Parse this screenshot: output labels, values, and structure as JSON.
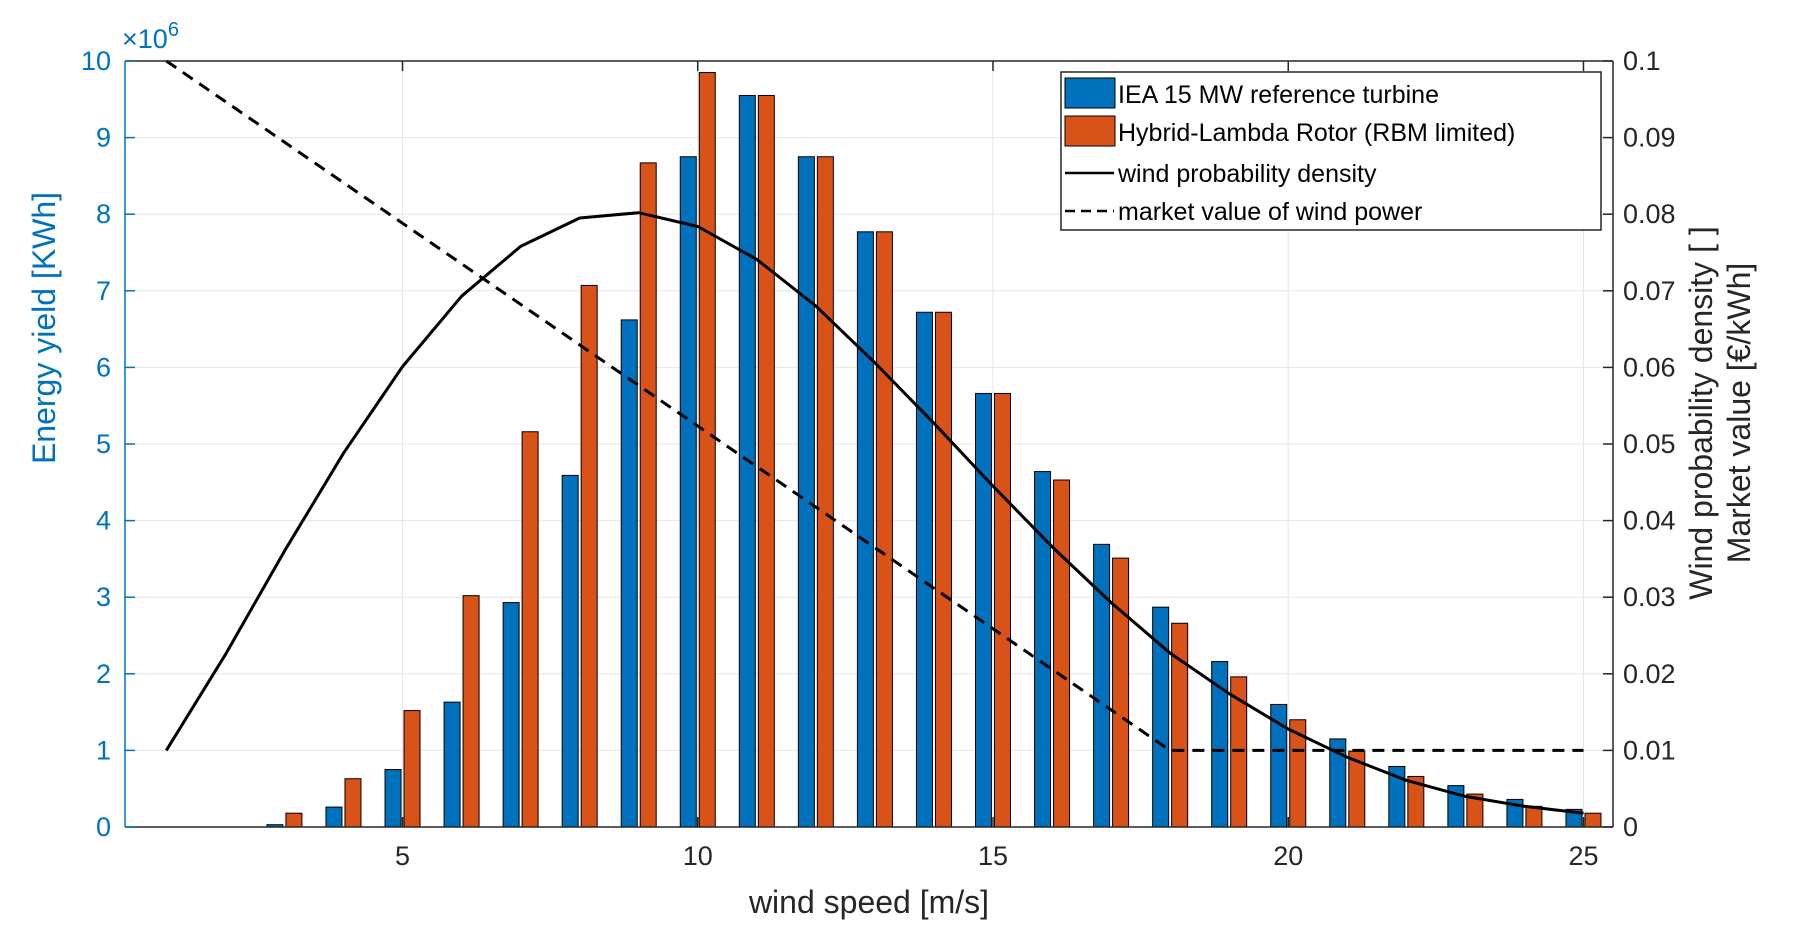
{
  "chart_data": {
    "type": "bar",
    "x": [
      1,
      2,
      3,
      4,
      5,
      6,
      7,
      8,
      9,
      10,
      11,
      12,
      13,
      14,
      15,
      16,
      17,
      18,
      19,
      20,
      21,
      22,
      23,
      24,
      25
    ],
    "series": [
      {
        "name": "IEA 15 MW reference turbine",
        "axis": "left",
        "color": "#0072BD",
        "values": [
          0,
          0,
          0.03,
          0.26,
          0.75,
          1.63,
          2.93,
          4.59,
          6.62,
          8.75,
          9.55,
          8.75,
          7.77,
          6.72,
          5.66,
          4.64,
          3.69,
          2.87,
          2.16,
          1.6,
          1.15,
          0.79,
          0.54,
          0.36,
          0.23
        ]
      },
      {
        "name": "Hybrid-Lambda Rotor (RBM limited)",
        "axis": "left",
        "color": "#D95319",
        "values": [
          0,
          0,
          0.18,
          0.63,
          1.52,
          3.02,
          5.16,
          7.07,
          8.67,
          9.85,
          9.55,
          8.75,
          7.77,
          6.72,
          5.66,
          4.53,
          3.51,
          2.66,
          1.96,
          1.4,
          0.99,
          0.66,
          0.43,
          0.27,
          0.18
        ]
      }
    ],
    "lines": [
      {
        "name": "wind probability density",
        "axis": "right",
        "style": "solid",
        "x": [
          1,
          2,
          3,
          4,
          5,
          6,
          7,
          8,
          9,
          10,
          11,
          12,
          13,
          14,
          15,
          16,
          17,
          18,
          19,
          20,
          21,
          22,
          23,
          24,
          25
        ],
        "values": [
          0.01,
          0.0225,
          0.036,
          0.0488,
          0.0601,
          0.0693,
          0.0758,
          0.0795,
          0.0802,
          0.0784,
          0.0741,
          0.068,
          0.0606,
          0.0527,
          0.0445,
          0.0366,
          0.0293,
          0.0227,
          0.0174,
          0.0128,
          0.0091,
          0.0061,
          0.004,
          0.0027,
          0.0018
        ]
      },
      {
        "name": "market value of wind power",
        "axis": "right",
        "style": "dashed",
        "x": [
          1,
          18,
          25
        ],
        "values": [
          0.1,
          0.01,
          0.01
        ]
      }
    ],
    "xlabel": "wind speed [m/s]",
    "ylabel": "Energy yield [KWh]",
    "ylabel_right": [
      "Wind probability density [ ]",
      "Market value [€/kWh]"
    ],
    "y_exponent": "10",
    "y_exponent_power": "6",
    "y_exponent_prefix": "×",
    "xlim": [
      0.3,
      25.5
    ],
    "ylim": [
      0,
      10
    ],
    "ylim_right": [
      0,
      0.1
    ],
    "xticks": [
      5,
      10,
      15,
      20,
      25
    ],
    "xtick_labels": [
      "5",
      "10",
      "15",
      "20",
      "25"
    ],
    "yticks": [
      0,
      1,
      2,
      3,
      4,
      5,
      6,
      7,
      8,
      9,
      10
    ],
    "ytick_labels": [
      "0",
      "1",
      "2",
      "3",
      "4",
      "5",
      "6",
      "7",
      "8",
      "9",
      "10"
    ],
    "yticks_right": [
      0,
      0.01,
      0.02,
      0.03,
      0.04,
      0.05,
      0.06,
      0.07,
      0.08,
      0.09,
      0.1
    ],
    "ytick_labels_right": [
      "0",
      "0.01",
      "0.02",
      "0.03",
      "0.04",
      "0.05",
      "0.06",
      "0.07",
      "0.08",
      "0.09",
      "0.1"
    ],
    "grid": true,
    "legend_position": "top-right",
    "left_axis_color": "#0072BD",
    "right_axis_color": "#262626"
  }
}
